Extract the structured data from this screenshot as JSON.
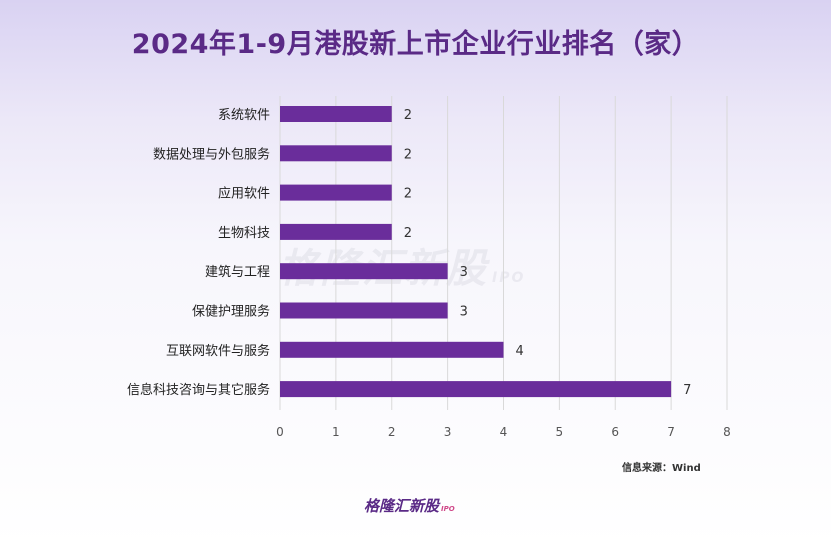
{
  "title": "2024年1-9月港股新上市企业行业排名（家）",
  "source": "信息来源：Wind",
  "watermark": {
    "brand": "格隆汇新股",
    "suffix": "IPO"
  },
  "footer": {
    "brand": "格隆汇新股",
    "suffix": "IPO"
  },
  "colors": {
    "bar": "#6a2d9b",
    "title": "#5a2a86",
    "grid": "#d9d9d9"
  },
  "chart_data": {
    "type": "bar",
    "orientation": "horizontal",
    "categories": [
      "系统软件",
      "数据处理与外包服务",
      "应用软件",
      "生物科技",
      "建筑与工程",
      "保健护理服务",
      "互联网软件与服务",
      "信息科技咨询与其它服务"
    ],
    "values": [
      2,
      2,
      2,
      2,
      3,
      3,
      4,
      7
    ],
    "xlim": [
      0,
      8
    ],
    "xticks": [
      "0",
      "1",
      "2",
      "3",
      "4",
      "5",
      "6",
      "7",
      "8"
    ],
    "grid": true
  }
}
